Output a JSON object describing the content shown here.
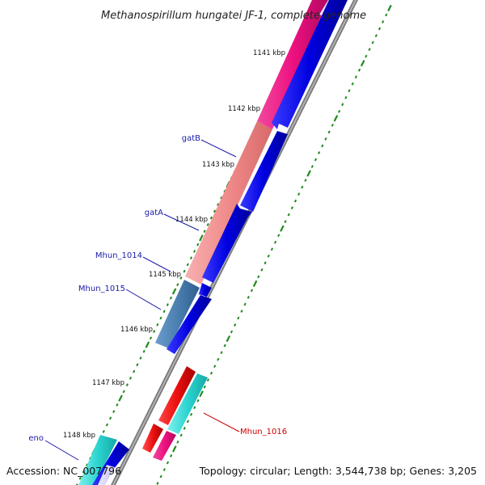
{
  "header": {
    "title": "Methanospirillum hungatei JF-1, complete genome"
  },
  "footer": {
    "accession": "Accession: NC_007796",
    "summary": "Topology: circular; Length: 3,544,738 bp; Genes: 3,205"
  },
  "colors": {
    "backbone": "#808080",
    "tick": "#1f8a1f",
    "cds_forward": "#0000ee",
    "rrna_like": "#ee1180",
    "salmon": "#f08a8a",
    "steelblue": "#4a7fb0",
    "cyan": "#2cd4d0",
    "red": "#ee1111",
    "label_blue": "#1a1aa8",
    "label_red": "#cc0000"
  },
  "kbp_labels": [
    "1141 kbp",
    "1142 kbp",
    "1143 kbp",
    "1144 kbp",
    "1145 kbp",
    "1146 kbp",
    "1147 kbp",
    "1148 kbp"
  ],
  "genes": [
    {
      "name": "gatB",
      "color_key": "label_blue"
    },
    {
      "name": "gatA",
      "color_key": "label_blue"
    },
    {
      "name": "Mhun_1014",
      "color_key": "label_blue"
    },
    {
      "name": "Mhun_1015",
      "color_key": "label_blue"
    },
    {
      "name": "Mhun_1016",
      "color_key": "label_red"
    },
    {
      "name": "eno",
      "color_key": "label_blue"
    }
  ]
}
